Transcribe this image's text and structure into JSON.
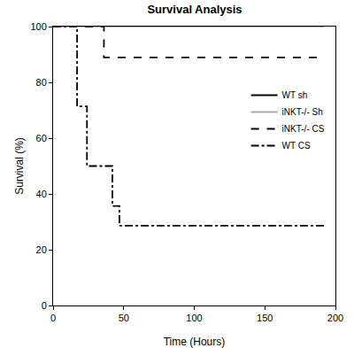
{
  "chart_data": {
    "type": "line",
    "title": "Survival Analysis",
    "x_label": "Time (Hours)",
    "y_label": "Survival (%)",
    "xlim": [
      0,
      200
    ],
    "xticks": [
      0,
      50,
      100,
      150,
      200
    ],
    "ylim": [
      0,
      100
    ],
    "yticks": [
      0,
      20,
      40,
      60,
      80,
      100
    ],
    "grid": false,
    "legend": "upper right",
    "series": [
      {
        "name": "WT sh",
        "color": "#000000",
        "line_style": "solid",
        "x": [
          0,
          192
        ],
        "values": [
          100,
          100
        ]
      },
      {
        "name": "iNKT-/- Sh",
        "color": "#aaaaaa",
        "line_style": "solid",
        "x": [
          0,
          192
        ],
        "values": [
          100,
          100
        ]
      },
      {
        "name": "iNKT-/- CS",
        "color": "#000000",
        "line_style": "dash",
        "x": [
          0,
          36,
          192
        ],
        "values": [
          100,
          88.9,
          88.9
        ]
      },
      {
        "name": "WT CS",
        "color": "#000000",
        "line_style": "dashdot",
        "x": [
          0,
          17,
          24,
          42,
          47,
          192
        ],
        "values": [
          100,
          71.4,
          50,
          35.7,
          28.6,
          28.6
        ]
      }
    ]
  }
}
